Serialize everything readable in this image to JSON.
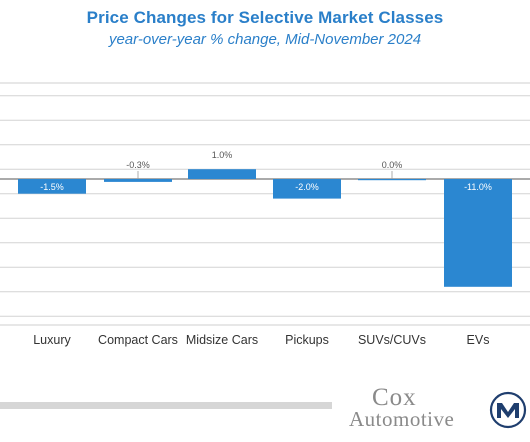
{
  "chart_data": {
    "type": "bar",
    "title": "Price Changes for Selective Market Classes",
    "subtitle": "year-over-year % change, Mid-November 2024",
    "categories": [
      "Luxury",
      "Compact Cars",
      "Midsize Cars",
      "Pickups",
      "SUVs/CUVs",
      "EVs"
    ],
    "values": [
      -1.5,
      -0.3,
      1.0,
      -2.0,
      0.0,
      -11.0
    ],
    "data_labels": [
      "-1.5%",
      "-0.3%",
      "1.0%",
      "-2.0%",
      "0.0%",
      "-11.0%"
    ],
    "bar_color": "#2b87d1",
    "grid": true,
    "xlabel": "",
    "ylabel": "",
    "ylim": [
      -13,
      9
    ]
  },
  "branding": {
    "logo_line1": "Cox",
    "logo_line2": "Automotive",
    "logo_color": "#8a8a8a"
  }
}
